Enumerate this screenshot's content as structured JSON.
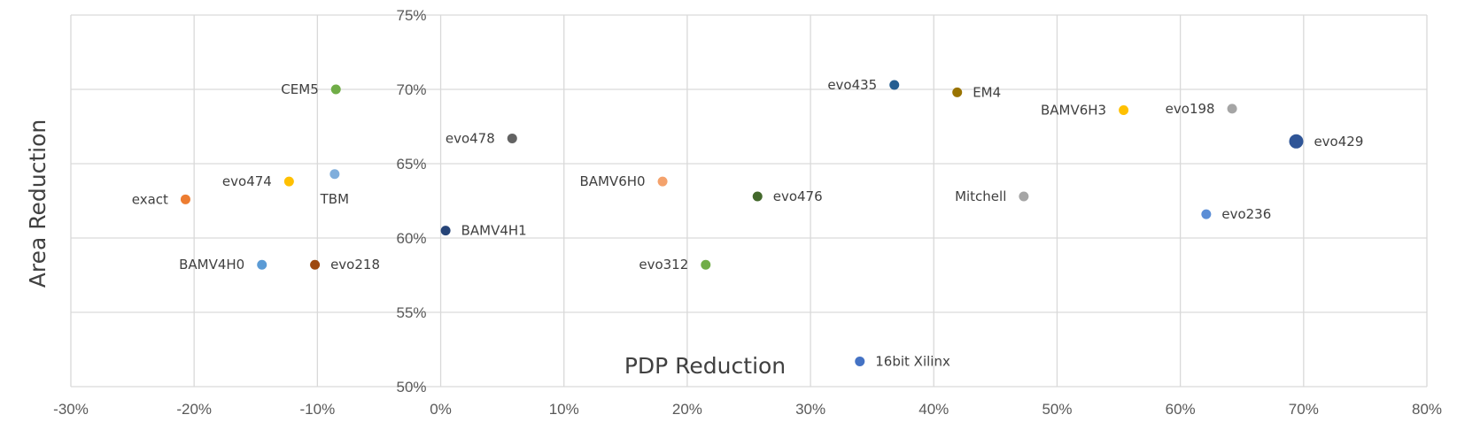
{
  "chart_data": {
    "type": "scatter",
    "title": "",
    "xlabel": "PDP Reduction",
    "ylabel": "Area Reduction",
    "xlim": [
      -30,
      80
    ],
    "ylim": [
      50,
      75
    ],
    "x_ticks": [
      "-30%",
      "-20%",
      "-10%",
      "0%",
      "10%",
      "20%",
      "30%",
      "40%",
      "50%",
      "60%",
      "70%",
      "80%"
    ],
    "y_ticks": [
      "50%",
      "55%",
      "60%",
      "65%",
      "70%",
      "75%"
    ],
    "grid": true,
    "legend": "none",
    "points": [
      {
        "label": "CEM5",
        "x": -8.5,
        "y": 70.0,
        "color": "#70ad47"
      },
      {
        "label": "evo474",
        "x": -12.3,
        "y": 63.8,
        "color": "#ffc000"
      },
      {
        "label": "TBM",
        "x": -8.6,
        "y": 64.3,
        "color": "#7faedc"
      },
      {
        "label": "exact",
        "x": -20.7,
        "y": 62.6,
        "color": "#ed7d31"
      },
      {
        "label": "BAMV4H0",
        "x": -14.5,
        "y": 58.2,
        "color": "#5b9bd5"
      },
      {
        "label": "evo218",
        "x": -10.2,
        "y": 58.2,
        "color": "#9e480e"
      },
      {
        "label": "BAMV4H1",
        "x": 0.4,
        "y": 60.5,
        "color": "#264478"
      },
      {
        "label": "evo478",
        "x": 5.8,
        "y": 66.7,
        "color": "#636363"
      },
      {
        "label": "BAMV6H0",
        "x": 18.0,
        "y": 63.8,
        "color": "#f4a26c"
      },
      {
        "label": "evo312",
        "x": 21.5,
        "y": 58.2,
        "color": "#70ad47"
      },
      {
        "label": "evo476",
        "x": 25.7,
        "y": 62.8,
        "color": "#43682b"
      },
      {
        "label": "16bit Xilinx",
        "x": 34.0,
        "y": 51.7,
        "color": "#4472c4"
      },
      {
        "label": "evo435",
        "x": 36.8,
        "y": 70.3,
        "color": "#255e91"
      },
      {
        "label": "EM4",
        "x": 41.9,
        "y": 69.8,
        "color": "#997300"
      },
      {
        "label": "Mitchell",
        "x": 47.3,
        "y": 62.8,
        "color": "#a5a5a5"
      },
      {
        "label": "BAMV6H3",
        "x": 55.4,
        "y": 68.6,
        "color": "#ffc000"
      },
      {
        "label": "evo198",
        "x": 64.2,
        "y": 68.7,
        "color": "#a5a5a5"
      },
      {
        "label": "evo236",
        "x": 62.1,
        "y": 61.6,
        "color": "#5b8ed6"
      },
      {
        "label": "evo429",
        "x": 69.4,
        "y": 66.5,
        "color": "#2f5597"
      }
    ]
  }
}
